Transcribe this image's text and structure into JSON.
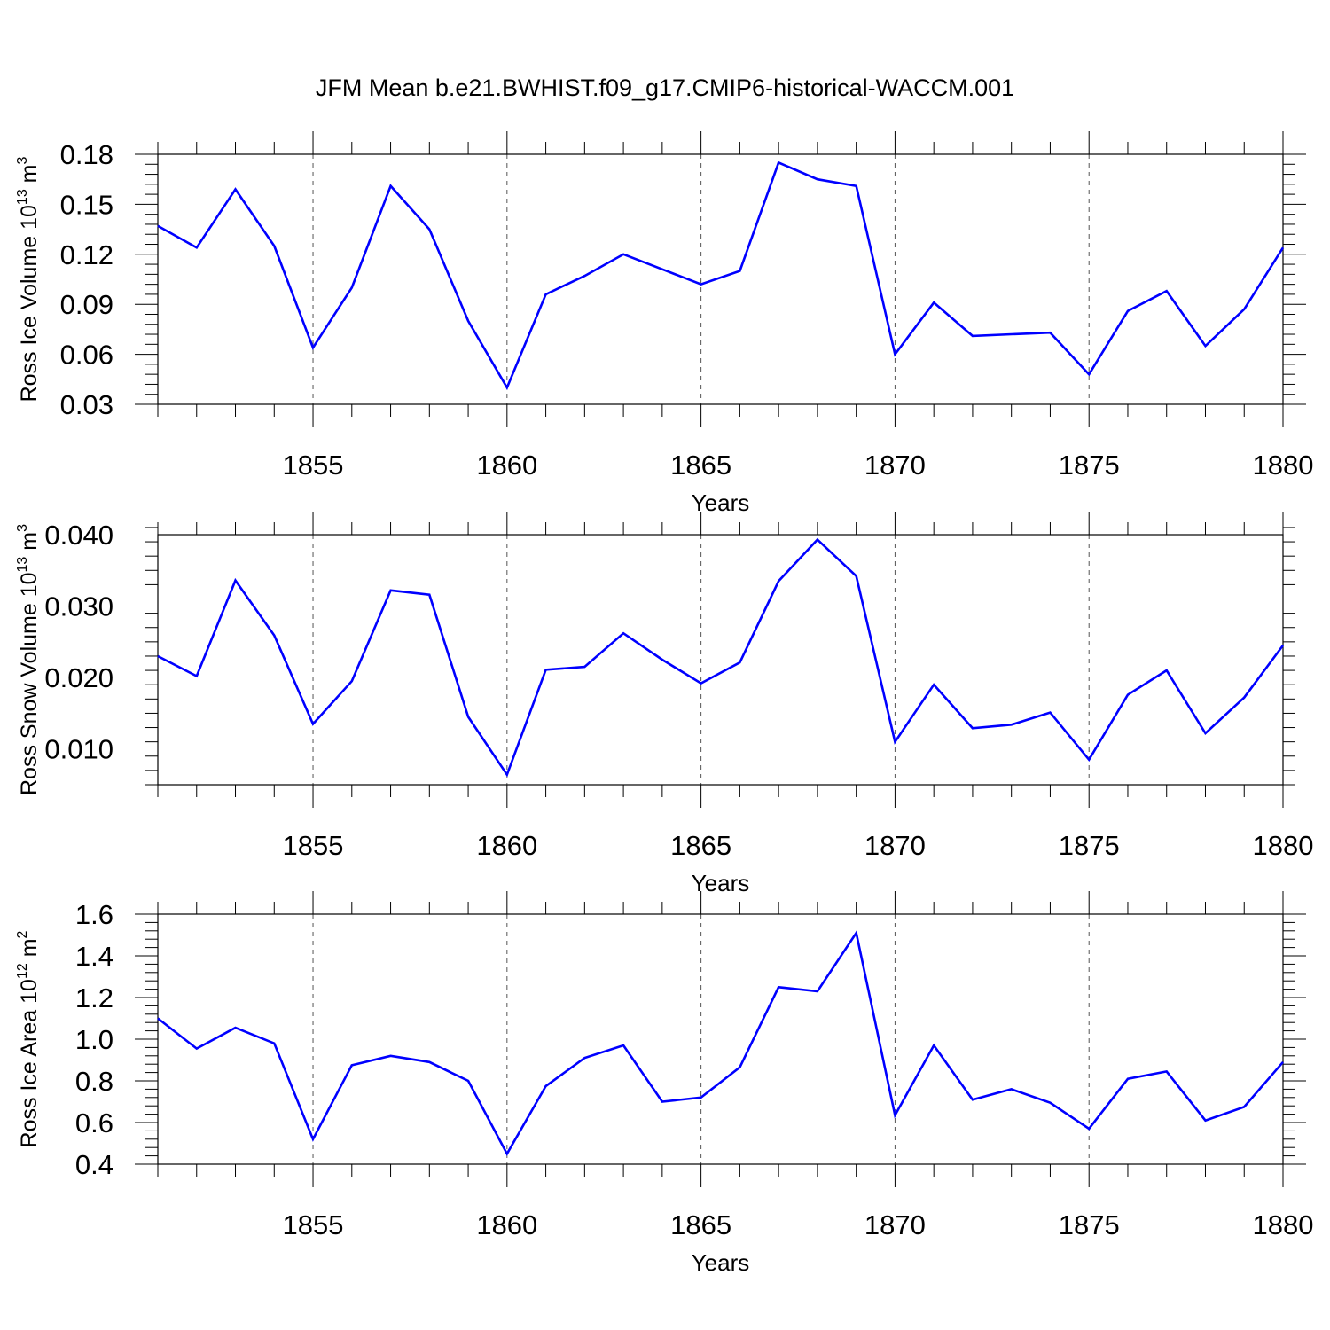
{
  "figure_title": "JFM Mean b.e21.BWHIST.f09_g17.CMIP6-historical-WACCM.001",
  "colors": {
    "line": "#0000ff",
    "axis": "#000000",
    "grid": "#555555"
  },
  "chart_data": [
    {
      "type": "line",
      "title": "",
      "xlabel": "Years",
      "ylabel": {
        "base": "Ross Ice Volume 10",
        "exp": "13",
        "unit": " m",
        "unit_exp": "3"
      },
      "xlim": [
        1851,
        1880
      ],
      "ylim": [
        0.03,
        0.18
      ],
      "xticks": [
        1855,
        1860,
        1865,
        1870,
        1875,
        1880
      ],
      "xtick_labels": [
        "1855",
        "1860",
        "1865",
        "1870",
        "1875",
        "1880"
      ],
      "yticks": [
        0.03,
        0.06,
        0.09,
        0.12,
        0.15,
        0.18
      ],
      "ytick_labels": [
        "0.03",
        "0.06",
        "0.09",
        "0.12",
        "0.15",
        "0.18"
      ],
      "grid": "vertical dashed at major x ticks",
      "x": [
        1851,
        1852,
        1853,
        1854,
        1855,
        1856,
        1857,
        1858,
        1859,
        1860,
        1861,
        1862,
        1863,
        1864,
        1865,
        1866,
        1867,
        1868,
        1869,
        1870,
        1871,
        1872,
        1873,
        1874,
        1875,
        1876,
        1877,
        1878,
        1879,
        1880
      ],
      "series": [
        {
          "values": [
            0.137,
            0.124,
            0.159,
            0.125,
            0.064,
            0.1,
            0.161,
            0.135,
            0.08,
            0.04,
            0.096,
            0.107,
            0.12,
            0.111,
            0.102,
            0.11,
            0.175,
            0.165,
            0.161,
            0.06,
            0.091,
            0.071,
            0.072,
            0.073,
            0.048,
            0.086,
            0.098,
            0.065,
            0.087,
            0.124
          ]
        }
      ]
    },
    {
      "type": "line",
      "title": "",
      "xlabel": "Years",
      "ylabel": {
        "base": "Ross Snow Volume 10",
        "exp": "13",
        "unit": " m",
        "unit_exp": "3"
      },
      "xlim": [
        1851,
        1880
      ],
      "ylim": [
        0.005,
        0.04
      ],
      "xticks": [
        1855,
        1860,
        1865,
        1870,
        1875,
        1880
      ],
      "xtick_labels": [
        "1855",
        "1860",
        "1865",
        "1870",
        "1875",
        "1880"
      ],
      "yticks": [
        0.01,
        0.02,
        0.03,
        0.04
      ],
      "ytick_labels": [
        "0.010",
        "0.020",
        "0.030",
        "0.040"
      ],
      "grid": "vertical dashed at major x ticks",
      "x": [
        1851,
        1852,
        1853,
        1854,
        1855,
        1856,
        1857,
        1858,
        1859,
        1860,
        1861,
        1862,
        1863,
        1864,
        1865,
        1866,
        1867,
        1868,
        1869,
        1870,
        1871,
        1872,
        1873,
        1874,
        1875,
        1876,
        1877,
        1878,
        1879,
        1880
      ],
      "series": [
        {
          "values": [
            0.023,
            0.0202,
            0.0336,
            0.0259,
            0.0135,
            0.0195,
            0.0322,
            0.0316,
            0.0145,
            0.0064,
            0.0211,
            0.0215,
            0.0262,
            0.0225,
            0.0192,
            0.0221,
            0.0335,
            0.0393,
            0.0342,
            0.011,
            0.019,
            0.0129,
            0.0134,
            0.0151,
            0.0085,
            0.0176,
            0.021,
            0.0122,
            0.0172,
            0.0245
          ]
        }
      ]
    },
    {
      "type": "line",
      "title": "",
      "xlabel": "Years",
      "ylabel": {
        "base": "Ross Ice Area 10",
        "exp": "12",
        "unit": " m",
        "unit_exp": "2"
      },
      "xlim": [
        1851,
        1880
      ],
      "ylim": [
        0.4,
        1.6
      ],
      "xticks": [
        1855,
        1860,
        1865,
        1870,
        1875,
        1880
      ],
      "xtick_labels": [
        "1855",
        "1860",
        "1865",
        "1870",
        "1875",
        "1880"
      ],
      "yticks": [
        0.4,
        0.6,
        0.8,
        1.0,
        1.2,
        1.4,
        1.6
      ],
      "ytick_labels": [
        "0.4",
        "0.6",
        "0.8",
        "1.0",
        "1.2",
        "1.4",
        "1.6"
      ],
      "grid": "vertical dashed at major x ticks",
      "x": [
        1851,
        1852,
        1853,
        1854,
        1855,
        1856,
        1857,
        1858,
        1859,
        1860,
        1861,
        1862,
        1863,
        1864,
        1865,
        1866,
        1867,
        1868,
        1869,
        1870,
        1871,
        1872,
        1873,
        1874,
        1875,
        1876,
        1877,
        1878,
        1879,
        1880
      ],
      "series": [
        {
          "values": [
            1.1,
            0.955,
            1.055,
            0.98,
            0.52,
            0.875,
            0.92,
            0.89,
            0.8,
            0.45,
            0.775,
            0.91,
            0.97,
            0.7,
            0.72,
            0.865,
            1.25,
            1.23,
            1.51,
            0.635,
            0.97,
            0.71,
            0.76,
            0.695,
            0.57,
            0.81,
            0.845,
            0.61,
            0.675,
            0.89
          ]
        }
      ]
    }
  ]
}
